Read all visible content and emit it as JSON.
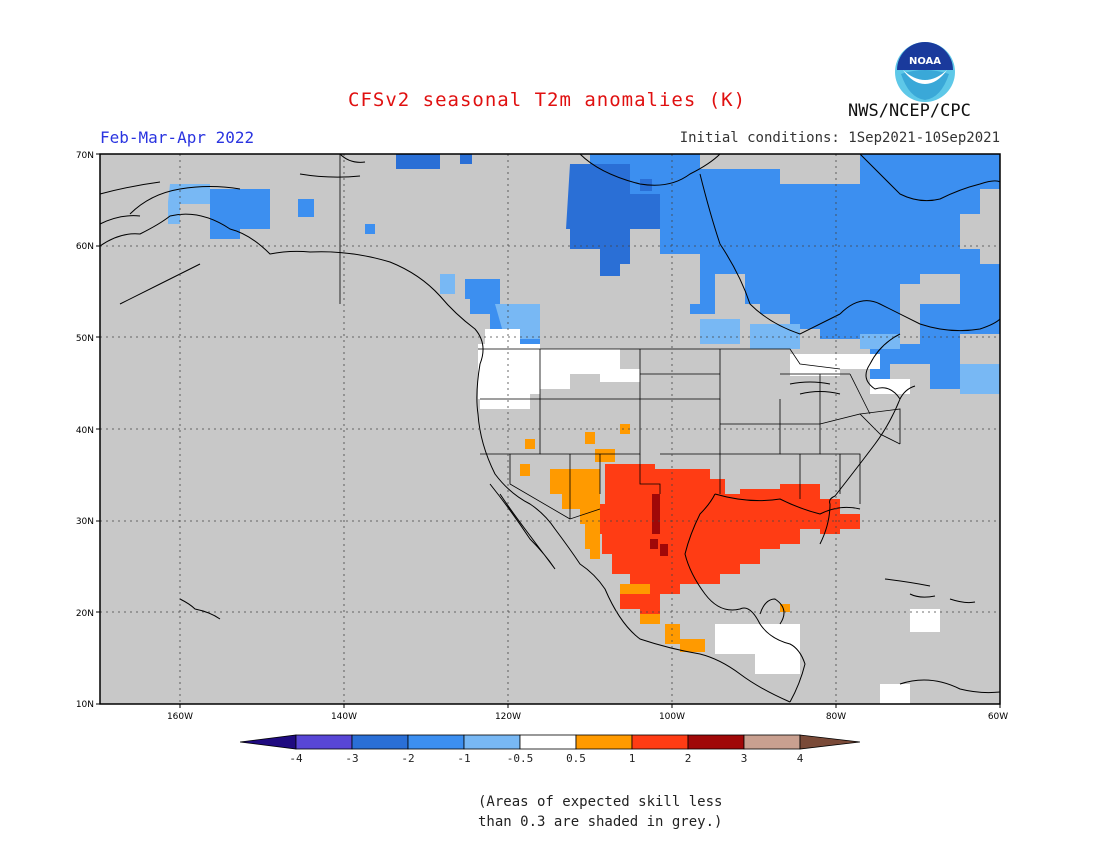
{
  "header": {
    "title": "CFSv2 seasonal T2m anomalies (K)",
    "period": "Feb-Mar-Apr 2022",
    "initial_conditions": "Initial conditions: 1Sep2021-10Sep2021",
    "agency": "NWS/NCEP/CPC",
    "logo_text": "NOAA"
  },
  "map": {
    "lat_labels": [
      "70N",
      "60N",
      "50N",
      "40N",
      "30N",
      "20N",
      "10N"
    ],
    "lon_labels": [
      "160W",
      "140W",
      "120W",
      "100W",
      "80W",
      "60W"
    ],
    "background_color": "#c8c8c8"
  },
  "colorbar": {
    "ticks": [
      "-4",
      "-3",
      "-2",
      "-1",
      "-0.5",
      "0.5",
      "1",
      "2",
      "3",
      "4"
    ],
    "colors": [
      "#1f0a80",
      "#5846d6",
      "#2a6fd6",
      "#3c8ff0",
      "#78b8f4",
      "#ffffff",
      "#ff9a00",
      "#ff3c14",
      "#a00808",
      "#c9a090",
      "#7a4a38"
    ]
  },
  "footnote": {
    "line1": "(Areas of expected skill less",
    "line2": "than 0.3 are shaded in grey.)"
  }
}
